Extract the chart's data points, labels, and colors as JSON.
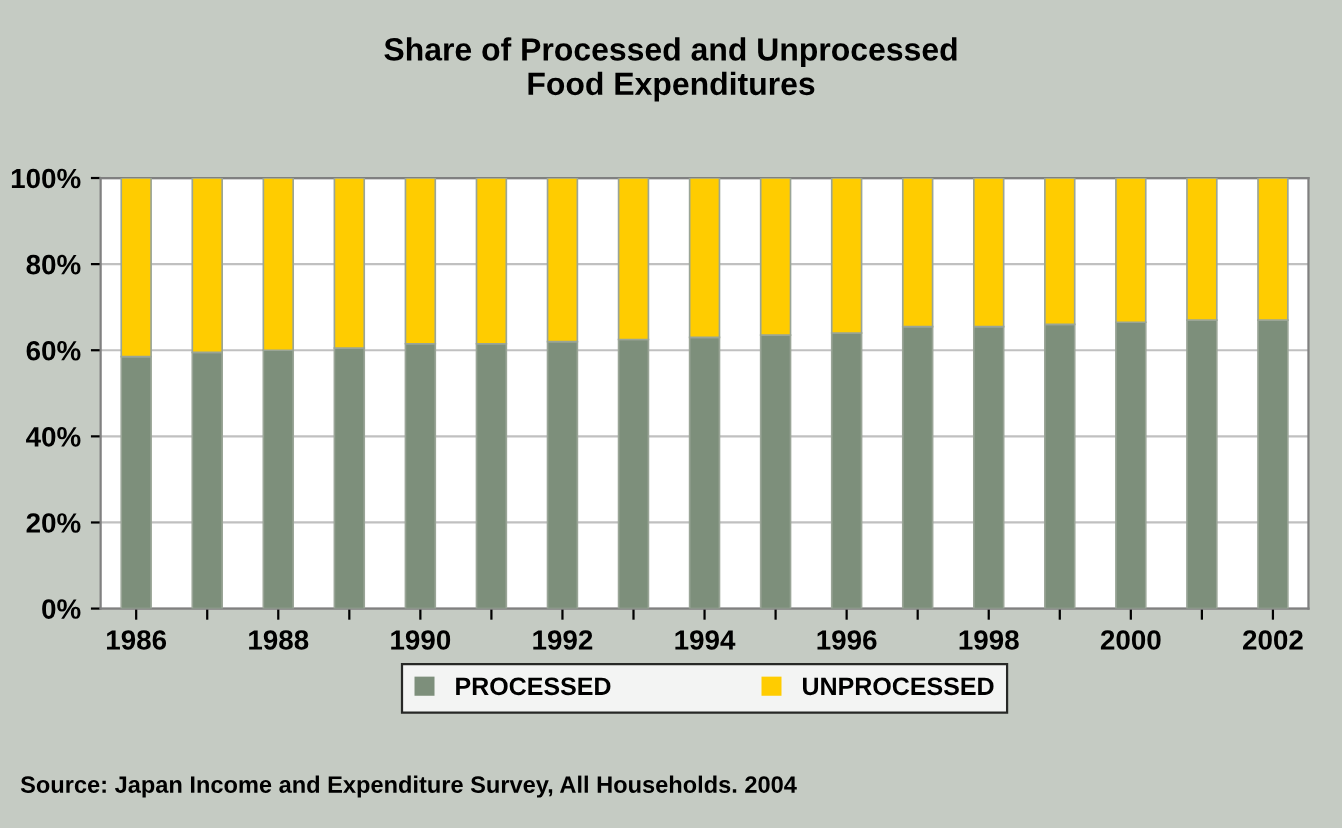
{
  "chart_data": {
    "type": "bar",
    "title": "Share of Processed and Unprocessed\nFood Expenditures",
    "categories": [
      "1986",
      null,
      "1988",
      null,
      "1990",
      null,
      "1992",
      null,
      "1994",
      null,
      "1996",
      null,
      "1998",
      null,
      "2000",
      null,
      "2002"
    ],
    "series": [
      {
        "name": "PROCESSED",
        "color": "#7d8f7b",
        "values": [
          58.5,
          59.5,
          60,
          60.5,
          61.5,
          61.5,
          62,
          62.5,
          63,
          63.5,
          64,
          65.5,
          65.5,
          66,
          66.5,
          67,
          67
        ]
      },
      {
        "name": "UNPROCESSED",
        "color": "#ffcc00",
        "values": [
          41.5,
          40.5,
          40,
          39.5,
          38.5,
          38.5,
          38,
          37.5,
          37,
          36.5,
          36,
          34.5,
          34.5,
          34,
          33.5,
          33,
          33
        ]
      }
    ],
    "stacked": true,
    "ylim": [
      0,
      100
    ],
    "yticks": [
      {
        "value": 0,
        "label": "0%"
      },
      {
        "value": 20,
        "label": "20%"
      },
      {
        "value": 40,
        "label": "40%"
      },
      {
        "value": 60,
        "label": "60%"
      },
      {
        "value": 80,
        "label": "80%"
      },
      {
        "value": 100,
        "label": "100%"
      }
    ],
    "grid": "y",
    "legend": "bottom",
    "annotations": [
      "Source: Japan Income and Expenditure Survey, All Households. 2004"
    ]
  }
}
